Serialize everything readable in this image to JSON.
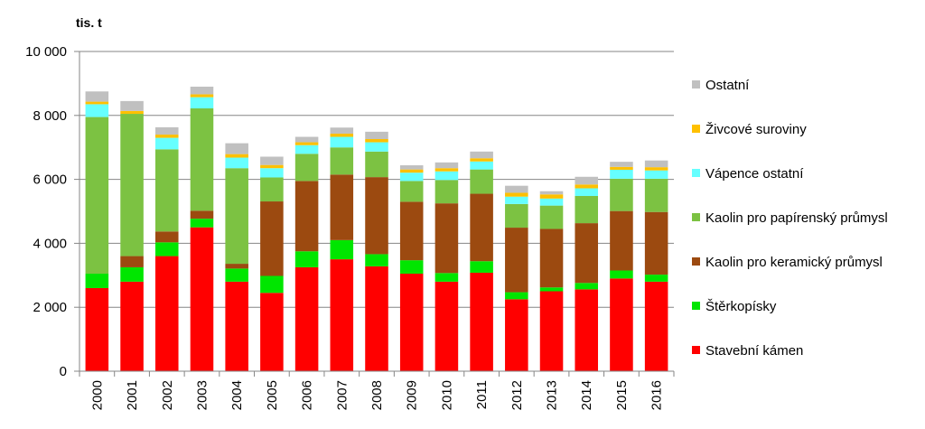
{
  "chart_data": {
    "type": "bar",
    "stacked": true,
    "ylabel": "tis. t",
    "ylim": [
      0,
      10000
    ],
    "yticks": [
      0,
      2000,
      4000,
      6000,
      8000,
      10000
    ],
    "ytick_labels": [
      "0",
      "2 000",
      "4 000",
      "6 000",
      "8 000",
      "10 000"
    ],
    "grid": true,
    "legend_position": "right",
    "categories": [
      "2000",
      "2001",
      "2002",
      "2003",
      "2004",
      "2005",
      "2006",
      "2007",
      "2008",
      "2009",
      "2010",
      "2011",
      "2012",
      "2013",
      "2014",
      "2015",
      "2016"
    ],
    "series": [
      {
        "name": "Stavební kámen",
        "color": "#ff0000",
        "values": [
          2600,
          2800,
          3600,
          4500,
          2800,
          2450,
          3250,
          3500,
          3280,
          3050,
          2800,
          3080,
          2250,
          2500,
          2560,
          2900,
          2800
        ]
      },
      {
        "name": "Štěrkopísky",
        "color": "#00e600",
        "values": [
          450,
          450,
          430,
          270,
          410,
          530,
          500,
          600,
          380,
          420,
          270,
          360,
          220,
          120,
          200,
          250,
          220
        ]
      },
      {
        "name": "Kaolin pro keramický průmysl",
        "color": "#9c4a10",
        "values": [
          0,
          350,
          340,
          250,
          150,
          2330,
          2200,
          2050,
          2410,
          1830,
          2180,
          2110,
          2020,
          1830,
          1870,
          1860,
          1960
        ]
      },
      {
        "name": "Kaolin pro papírenský průmysl",
        "color": "#7cc242",
        "values": [
          4900,
          4450,
          2570,
          3200,
          2990,
          750,
          850,
          850,
          800,
          650,
          730,
          760,
          740,
          730,
          850,
          1010,
          1040
        ]
      },
      {
        "name": "Vápence ostatní",
        "color": "#66ffff",
        "values": [
          400,
          0,
          360,
          350,
          330,
          290,
          270,
          330,
          290,
          260,
          270,
          250,
          230,
          220,
          240,
          280,
          260
        ]
      },
      {
        "name": "Živcové suroviny",
        "color": "#ffc000",
        "values": [
          80,
          90,
          100,
          90,
          110,
          100,
          90,
          100,
          100,
          100,
          100,
          100,
          120,
          130,
          120,
          90,
          100
        ]
      },
      {
        "name": "Ostatní",
        "color": "#c0c0c0",
        "values": [
          320,
          310,
          230,
          240,
          340,
          260,
          170,
          190,
          230,
          130,
          180,
          210,
          220,
          100,
          240,
          160,
          210
        ]
      }
    ]
  }
}
